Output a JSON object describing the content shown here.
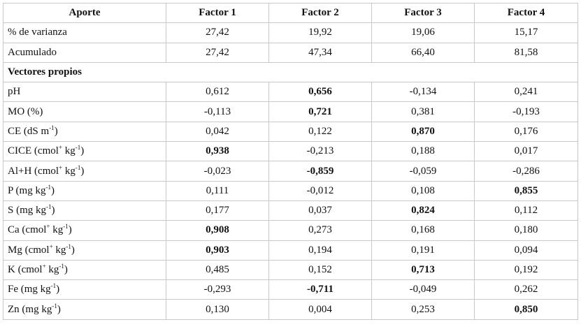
{
  "table": {
    "header": [
      "Aporte",
      "Factor  1",
      "Factor 2",
      "Factor 3",
      "Factor 4"
    ],
    "summary_rows": [
      {
        "label": "% de varianza",
        "cells": [
          "27,42",
          "19,92",
          "19,06",
          "15,17"
        ]
      },
      {
        "label": "Acumulado",
        "cells": [
          "27,42",
          "47,34",
          "66,40",
          "81,58"
        ]
      }
    ],
    "section": "Vectores propios",
    "rows": [
      {
        "label": [
          "pH"
        ],
        "cells": [
          "0,612",
          "0,656",
          "-0,134",
          "0,241"
        ],
        "bold": [
          1
        ]
      },
      {
        "label": [
          "MO (%)"
        ],
        "cells": [
          "-0,113",
          "0,721",
          "0,381",
          "-0,193"
        ],
        "bold": [
          1
        ]
      },
      {
        "label": [
          "CE (dS m",
          "-1",
          ")"
        ],
        "cells": [
          "0,042",
          "0,122",
          "0,870",
          "0,176"
        ],
        "bold": [
          2
        ]
      },
      {
        "label": [
          "CICE (cmol",
          "+",
          " kg",
          "-1",
          ")"
        ],
        "cells": [
          "0,938",
          "-0,213",
          "0,188",
          "0,017"
        ],
        "bold": [
          0
        ]
      },
      {
        "label": [
          "Al+H (cmol",
          "+",
          " kg",
          "-1",
          ")"
        ],
        "cells": [
          "-0,023",
          "-0,859",
          "-0,059",
          "-0,286"
        ],
        "bold": [
          1
        ]
      },
      {
        "label": [
          "P (mg kg",
          "-1",
          ")"
        ],
        "cells": [
          "0,111",
          "-0,012",
          "0,108",
          "0,855"
        ],
        "bold": [
          3
        ]
      },
      {
        "label": [
          "S (mg kg",
          "-1",
          ")"
        ],
        "cells": [
          "0,177",
          "0,037",
          "0,824",
          "0,112"
        ],
        "bold": [
          2
        ]
      },
      {
        "label": [
          "Ca (cmol",
          "+",
          " kg",
          "-1",
          ")"
        ],
        "cells": [
          "0,908",
          "0,273",
          "0,168",
          "0,180"
        ],
        "bold": [
          0
        ]
      },
      {
        "label": [
          "Mg (cmol",
          "+",
          " kg",
          "-1",
          ")"
        ],
        "cells": [
          "0,903",
          "0,194",
          "0,191",
          "0,094"
        ],
        "bold": [
          0
        ]
      },
      {
        "label": [
          "K (cmol",
          "+",
          " kg",
          "-1",
          ")"
        ],
        "cells": [
          "0,485",
          "0,152",
          "0,713",
          "0,192"
        ],
        "bold": [
          2
        ]
      },
      {
        "label": [
          "Fe (mg kg",
          "-1",
          ")"
        ],
        "cells": [
          "-0,293",
          "-0,711",
          "-0,049",
          "0,262"
        ],
        "bold": [
          1
        ]
      },
      {
        "label": [
          "Zn (mg kg",
          "-1",
          ")"
        ],
        "cells": [
          "0,130",
          "0,004",
          "0,253",
          "0,850"
        ],
        "bold": [
          3
        ]
      }
    ]
  }
}
